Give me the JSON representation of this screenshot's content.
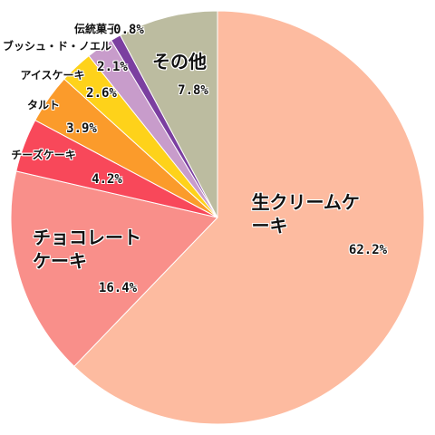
{
  "chart_data": {
    "type": "pie",
    "categories": [
      "生クリームケーキ",
      "チョコレート\nケーキ",
      "チーズケーキ",
      "タルト",
      "アイスケーキ",
      "ブッシュ・ド・ノエル",
      "伝統菓子",
      "その他"
    ],
    "values": [
      62.2,
      16.4,
      4.2,
      3.9,
      2.6,
      2.1,
      0.8,
      7.8
    ],
    "value_labels": [
      "62.2%",
      "16.4%",
      "4.2%",
      "3.9%",
      "2.6%",
      "2.1%",
      "0.8%",
      "7.8%"
    ],
    "colors": [
      "#fdbba0",
      "#f98f8a",
      "#f8485a",
      "#fb9b2b",
      "#fed21a",
      "#c89ccb",
      "#7b3fa0",
      "#bcbca0"
    ]
  }
}
